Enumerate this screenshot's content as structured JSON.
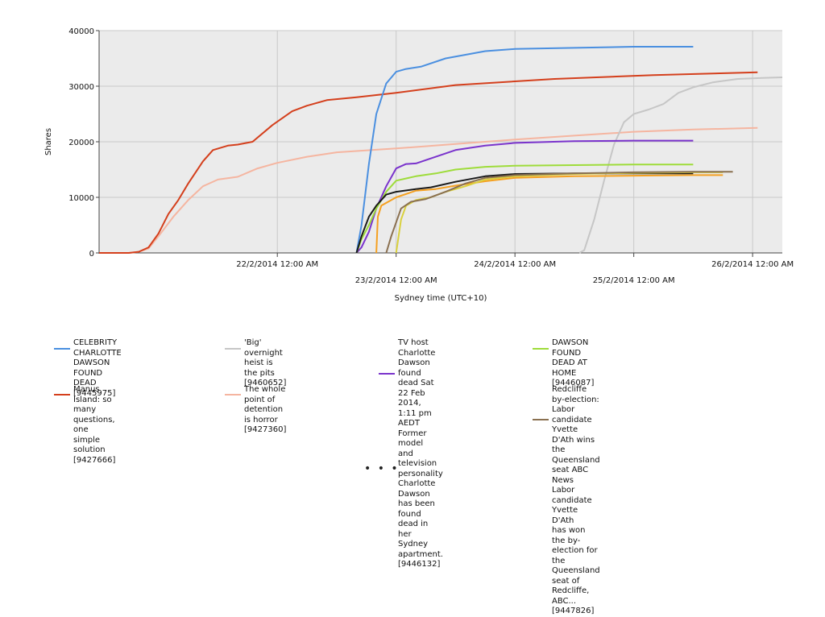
{
  "chart_data": {
    "type": "line",
    "ylabel": "Shares",
    "xlabel": "Sydney time (UTC+10)",
    "ylim": [
      0,
      40000
    ],
    "yticks": [
      "0",
      "10000",
      "20000",
      "30000",
      "40000"
    ],
    "xticks_upper": [
      "22/2/2014 12:00 AM",
      "24/2/2014 12:00 AM",
      "26/2/2014 12:00 AM"
    ],
    "xticks_lower": [
      "23/2/2014 12:00 AM",
      "25/2/2014 12:00 AM"
    ],
    "grid": true,
    "legend_position": "bottom",
    "x_unit": "hours from 21/2/2014 12:00 AM",
    "series": [
      {
        "name": "CELEBRITY CHARLOTTE DAWSON FOUND DEAD [9445975]",
        "color": "#4a8fe0",
        "points": [
          [
            40,
            0
          ],
          [
            41,
            5000
          ],
          [
            42.5,
            16000
          ],
          [
            44,
            25000
          ],
          [
            46,
            30500
          ],
          [
            48,
            32600
          ],
          [
            50,
            33100
          ],
          [
            53,
            33500
          ],
          [
            58,
            35000
          ],
          [
            66,
            36300
          ],
          [
            72,
            36700
          ],
          [
            84,
            36900
          ],
          [
            96,
            37100
          ],
          [
            108,
            37100
          ]
        ]
      },
      {
        "name": "Manus Island: so many questions, one simple solution [9427666]",
        "color": "#d43f1c",
        "points": [
          [
            -12,
            0
          ],
          [
            -6,
            0
          ],
          [
            -4,
            200
          ],
          [
            -2,
            1000
          ],
          [
            0,
            3500
          ],
          [
            2,
            7000
          ],
          [
            4,
            9500
          ],
          [
            6,
            12500
          ],
          [
            9,
            16500
          ],
          [
            11,
            18500
          ],
          [
            14,
            19300
          ],
          [
            16,
            19500
          ],
          [
            19,
            20000
          ],
          [
            23,
            23000
          ],
          [
            27,
            25500
          ],
          [
            30,
            26500
          ],
          [
            34,
            27500
          ],
          [
            40,
            28000
          ],
          [
            48,
            28800
          ],
          [
            60,
            30200
          ],
          [
            80,
            31300
          ],
          [
            100,
            32000
          ],
          [
            121,
            32500
          ]
        ]
      },
      {
        "name": "'Big' overnight heist is the pits [9460652]",
        "color": "#c6c6c6",
        "points": [
          [
            85,
            0
          ],
          [
            86,
            500
          ],
          [
            88,
            6000
          ],
          [
            90,
            13000
          ],
          [
            92,
            19500
          ],
          [
            94,
            23500
          ],
          [
            96,
            25000
          ],
          [
            99,
            25800
          ],
          [
            102,
            26800
          ],
          [
            105,
            28800
          ],
          [
            108,
            29800
          ],
          [
            112,
            30700
          ],
          [
            117,
            31300
          ],
          [
            122,
            31500
          ],
          [
            126,
            31600
          ]
        ]
      },
      {
        "name": "The whole point of detention is horror [9427360]",
        "color": "#f5b5a0",
        "points": [
          [
            -12,
            0
          ],
          [
            -6,
            0
          ],
          [
            -4,
            200
          ],
          [
            -2,
            800
          ],
          [
            0,
            3000
          ],
          [
            3,
            6500
          ],
          [
            6,
            9500
          ],
          [
            9,
            12000
          ],
          [
            12,
            13200
          ],
          [
            16,
            13700
          ],
          [
            20,
            15200
          ],
          [
            24,
            16200
          ],
          [
            30,
            17300
          ],
          [
            36,
            18100
          ],
          [
            48,
            18800
          ],
          [
            60,
            19600
          ],
          [
            72,
            20400
          ],
          [
            84,
            21100
          ],
          [
            96,
            21800
          ],
          [
            108,
            22200
          ],
          [
            121,
            22500
          ]
        ]
      },
      {
        "name": "TV host Charlotte Dawson found dead Sat 22 Feb 2014, 1:11 pm AEDT Former model and television personality Charlotte Dawson has been found dead in her Sydney apartment. [9446132]",
        "color": "#7a33cc",
        "points": [
          [
            40,
            0
          ],
          [
            41,
            1000
          ],
          [
            42.5,
            3800
          ],
          [
            44,
            8000
          ],
          [
            46,
            12000
          ],
          [
            48,
            15200
          ],
          [
            50,
            16000
          ],
          [
            52,
            16100
          ],
          [
            55,
            17000
          ],
          [
            60,
            18500
          ],
          [
            66,
            19300
          ],
          [
            72,
            19800
          ],
          [
            84,
            20100
          ],
          [
            96,
            20200
          ],
          [
            108,
            20200
          ]
        ]
      },
      {
        "name": "Redcliffe by-election: Labor candidate Yvette D'Ath wins the Queensland seat ABC News Labor candidate Yvette D'Ath has won the by-election for the Queensland seat of Redcliffe, ABC... [9447826]",
        "color": "#8a7050",
        "points": [
          [
            46,
            0
          ],
          [
            47,
            3000
          ],
          [
            49,
            8000
          ],
          [
            51,
            9200
          ],
          [
            54,
            9700
          ],
          [
            58,
            11000
          ],
          [
            62,
            12500
          ],
          [
            66,
            13500
          ],
          [
            72,
            14000
          ],
          [
            84,
            14300
          ],
          [
            96,
            14500
          ],
          [
            108,
            14600
          ],
          [
            116,
            14600
          ]
        ]
      },
      {
        "name": "DAWSON FOUND DEAD AT HOME [9446087]",
        "color": "#9edc3a",
        "points": [
          [
            40,
            0
          ],
          [
            41,
            2500
          ],
          [
            42.5,
            5000
          ],
          [
            44,
            8000
          ],
          [
            46,
            11000
          ],
          [
            48,
            13000
          ],
          [
            52,
            13800
          ],
          [
            56,
            14300
          ],
          [
            60,
            15000
          ],
          [
            66,
            15500
          ],
          [
            72,
            15700
          ],
          [
            84,
            15800
          ],
          [
            96,
            15900
          ],
          [
            108,
            15900
          ]
        ]
      },
      {
        "name": "",
        "color": "#1a1a1a",
        "points": [
          [
            40,
            0
          ],
          [
            41,
            3000
          ],
          [
            42.5,
            6500
          ],
          [
            44,
            8500
          ],
          [
            46,
            10500
          ],
          [
            48,
            11000
          ],
          [
            52,
            11500
          ],
          [
            55,
            11800
          ],
          [
            60,
            12800
          ],
          [
            66,
            13800
          ],
          [
            72,
            14200
          ],
          [
            84,
            14300
          ],
          [
            96,
            14300
          ],
          [
            108,
            14300
          ]
        ]
      },
      {
        "name": "",
        "color": "#d9d03c",
        "points": [
          [
            48,
            0
          ],
          [
            49,
            6000
          ],
          [
            50,
            8500
          ],
          [
            52,
            9500
          ],
          [
            55,
            10000
          ],
          [
            58,
            11000
          ],
          [
            62,
            12000
          ],
          [
            66,
            13200
          ],
          [
            72,
            13800
          ],
          [
            84,
            14200
          ],
          [
            96,
            14400
          ],
          [
            108,
            14500
          ],
          [
            114,
            14500
          ]
        ]
      },
      {
        "name": "",
        "color": "#f5a020",
        "points": [
          [
            44,
            0
          ],
          [
            44.3,
            6500
          ],
          [
            45,
            8500
          ],
          [
            48,
            10000
          ],
          [
            52,
            11200
          ],
          [
            56,
            11500
          ],
          [
            60,
            12100
          ],
          [
            66,
            12900
          ],
          [
            72,
            13500
          ],
          [
            84,
            13800
          ],
          [
            96,
            13900
          ],
          [
            108,
            14000
          ],
          [
            114,
            14000
          ]
        ]
      }
    ]
  },
  "legend": [
    {
      "text": "CELEBRITY CHARLOTTE DAWSON\nFOUND DEAD [9445975]",
      "color": "#4a8fe0"
    },
    {
      "text": "'Big' overnight heist is\nthe pits [9460652]",
      "color": "#c6c6c6"
    },
    {
      "text": "TV host Charlotte Dawson\nfound dead Sat 22 Feb 2014,\n1:11 pm AEDT Former model\nand television personality\nCharlotte Dawson has been\nfound dead in her Sydney\napartment. [9446132]",
      "color": "#7a33cc"
    },
    {
      "text": "DAWSON FOUND DEAD AT HOME\n[9446087]",
      "color": "#9edc3a"
    },
    {
      "text": "Manus Island: so many questions,\none simple solution [9427666]",
      "color": "#d43f1c"
    },
    {
      "text": "The whole point of detention\nis horror [9427360]",
      "color": "#f5b5a0"
    },
    {
      "text": "Redcliffe by-election: Labor\ncandidate Yvette D'Ath wins\nthe Queensland seat ABC News\nLabor candidate Yvette D'Ath\nhas won the by-election for\nthe Queensland seat of Redcliffe,\nABC... [9447826]",
      "color": "#8a7050"
    }
  ],
  "more_indicator": "• • •"
}
